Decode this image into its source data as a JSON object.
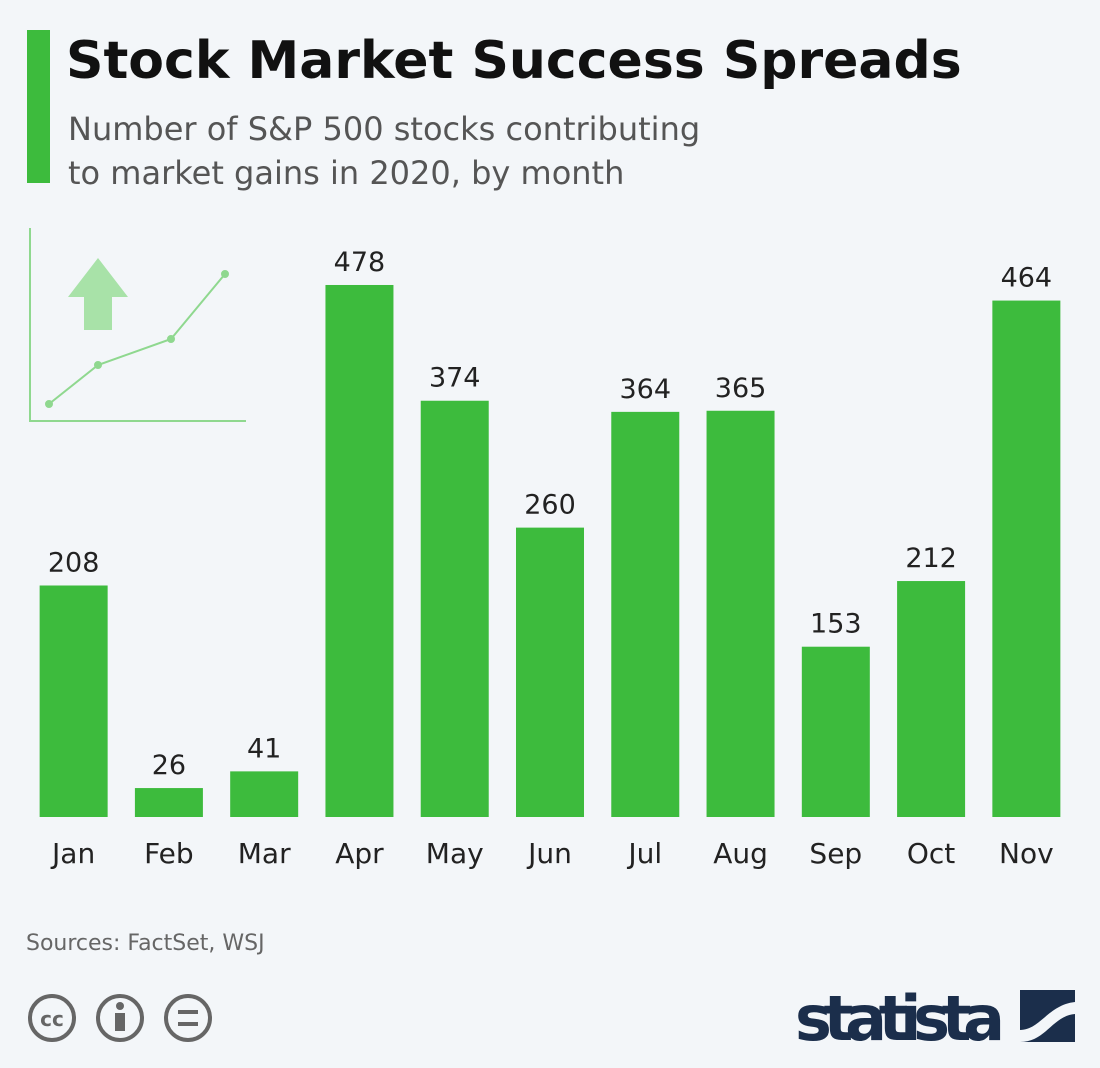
{
  "chart_data": {
    "type": "bar",
    "title": "Stock Market Success Spreads",
    "subtitle": [
      "Number of S&P 500 stocks contributing",
      "to market gains in 2020, by month"
    ],
    "categories": [
      "Jan",
      "Feb",
      "Mar",
      "Apr",
      "May",
      "Jun",
      "Jul",
      "Aug",
      "Sep",
      "Oct",
      "Nov"
    ],
    "values": [
      208,
      26,
      41,
      478,
      374,
      260,
      364,
      365,
      153,
      212,
      464
    ],
    "color": "#3dbb3d",
    "ylim": [
      0,
      500
    ],
    "source": "Sources: FactSet, WSJ",
    "license": "cc",
    "brand": "statista"
  }
}
